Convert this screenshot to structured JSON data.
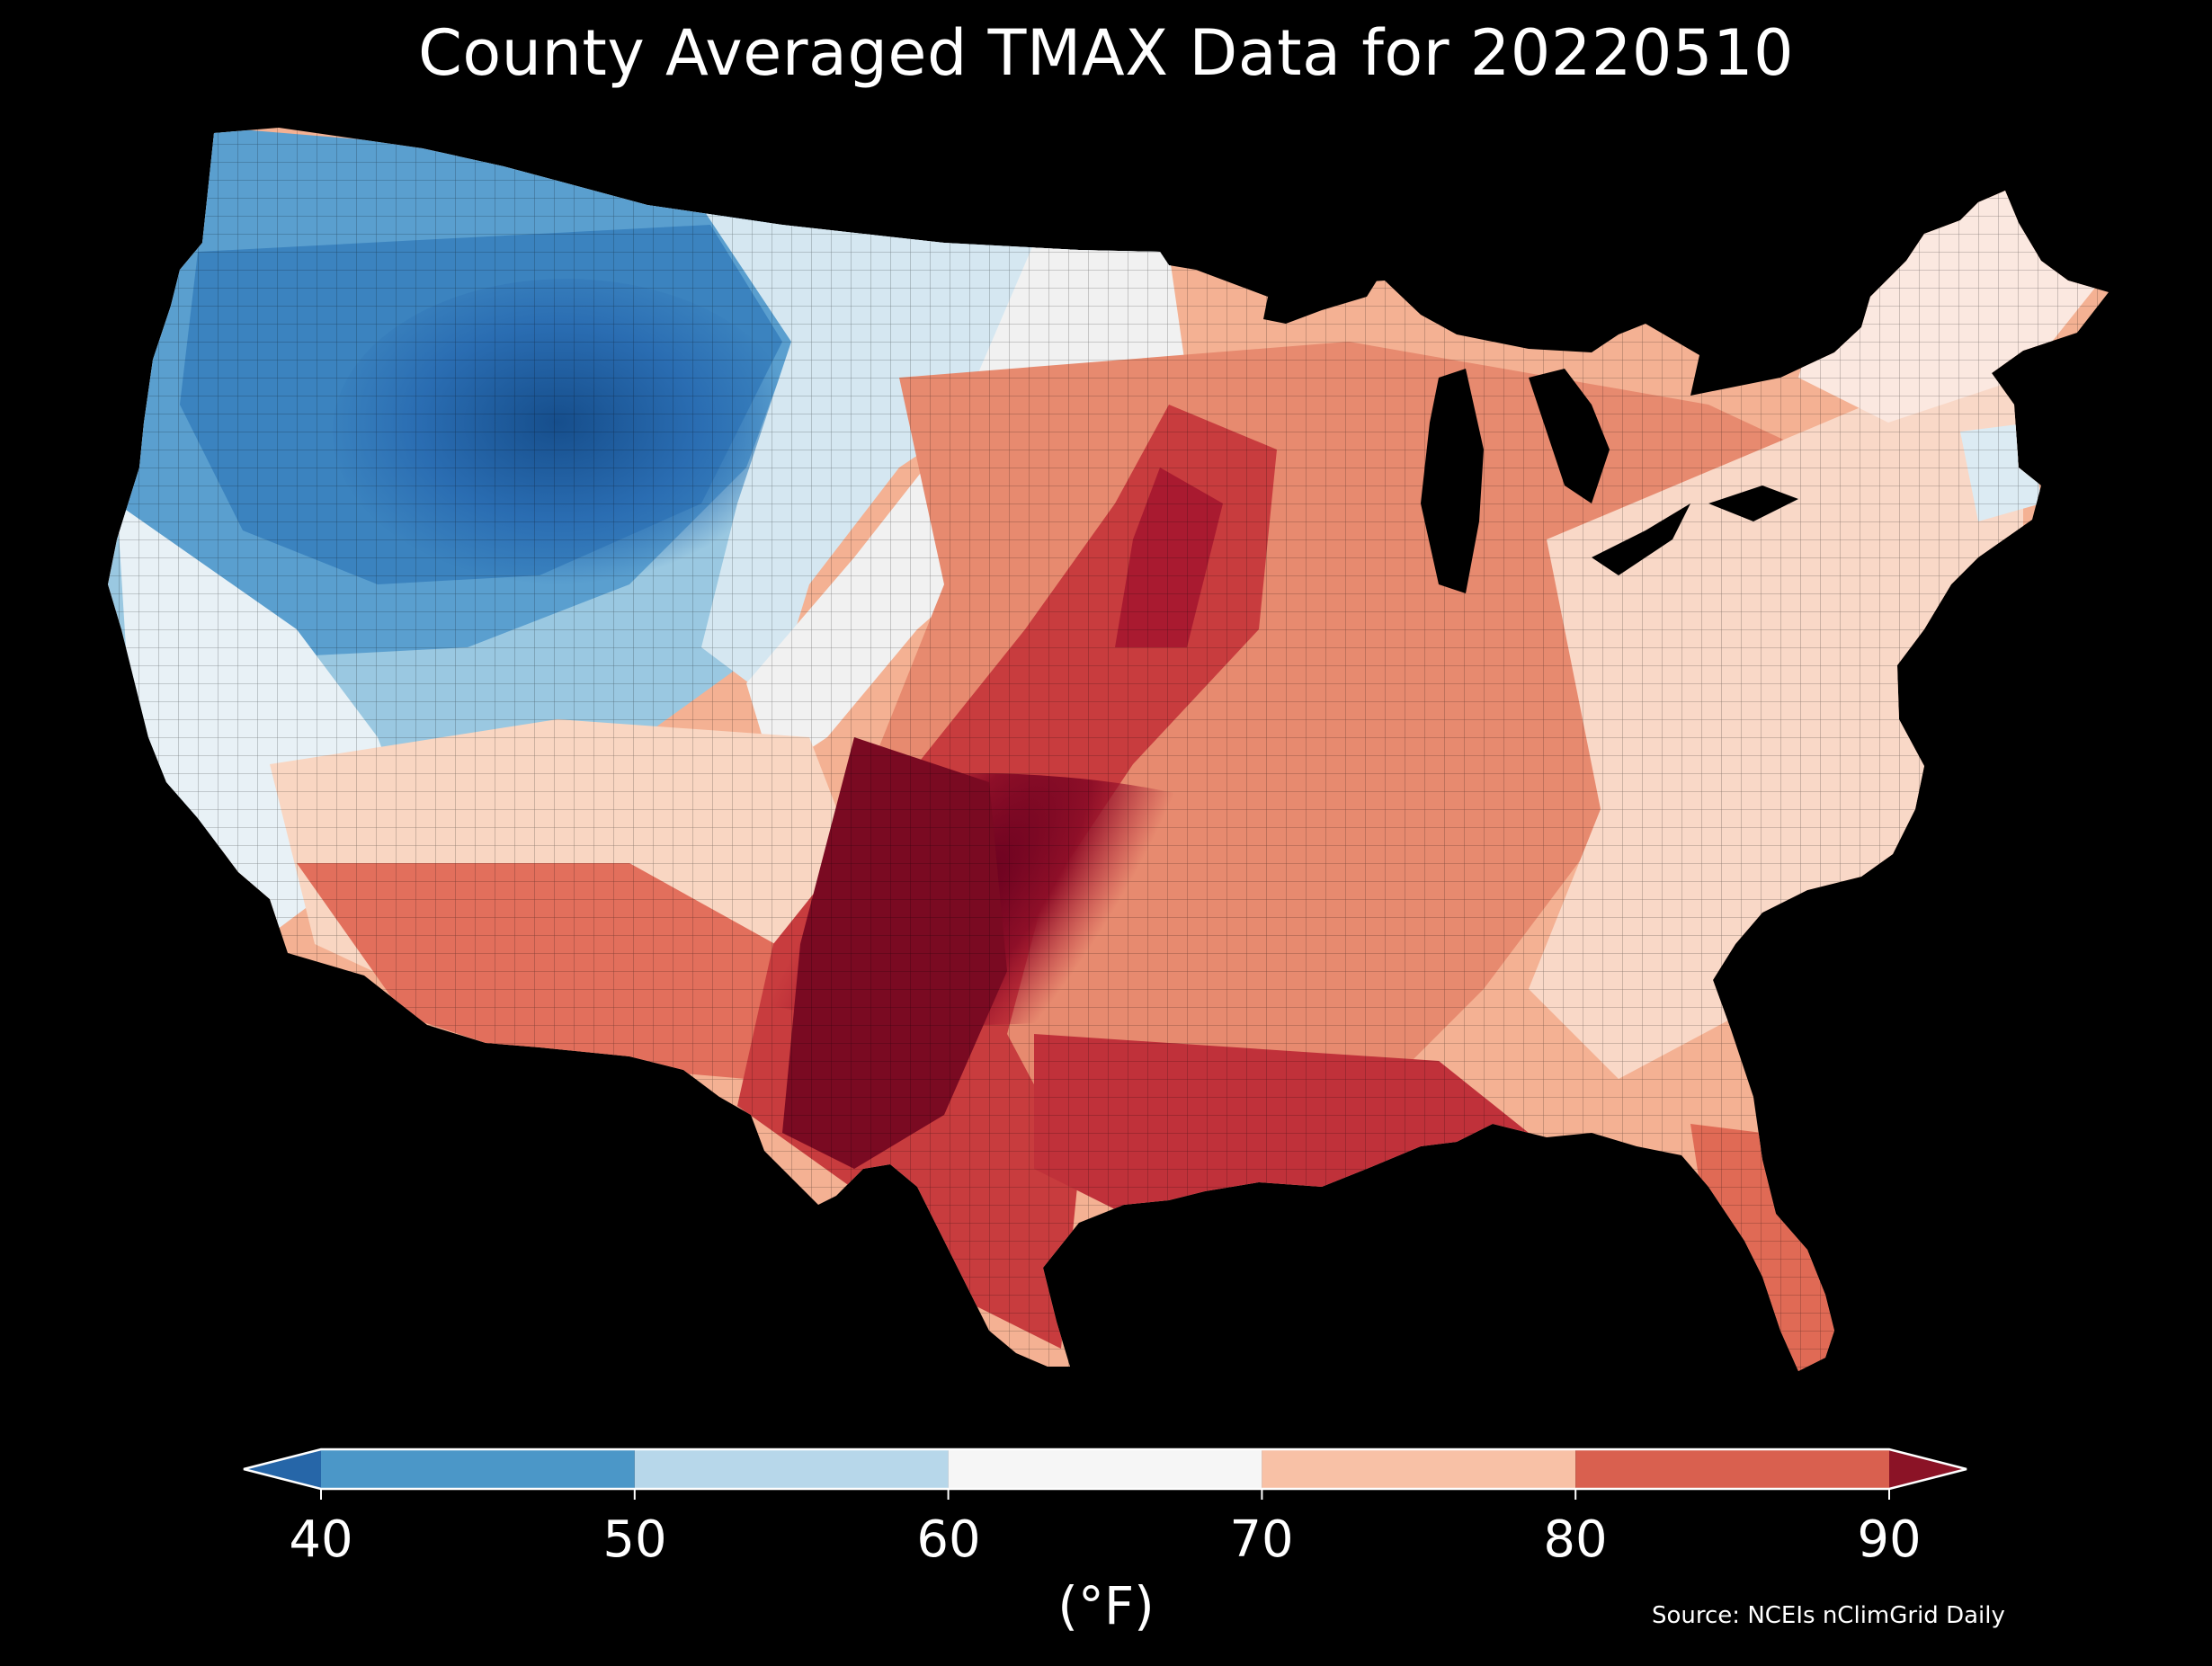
{
  "title": "County Averaged TMAX Data for 20220510",
  "source": "Source: NCEIs nClimGrid Daily",
  "colorbar": {
    "unit": "(°F)",
    "ticks": [
      "40",
      "50",
      "60",
      "70",
      "80",
      "90"
    ],
    "values": [
      40,
      50,
      60,
      70,
      80,
      90
    ],
    "extend": "both",
    "bins": [
      {
        "from": 40,
        "to": 50,
        "color": "#4b97c8"
      },
      {
        "from": 50,
        "to": 60,
        "color": "#b7d7ea"
      },
      {
        "from": 60,
        "to": 70,
        "color": "#f6f6f6"
      },
      {
        "from": 70,
        "to": 80,
        "color": "#f8c1a6"
      },
      {
        "from": 80,
        "to": 90,
        "color": "#d9604f"
      }
    ],
    "under_color": "#2666a8",
    "over_color": "#8b1326"
  },
  "map": {
    "region": "Contiguous United States",
    "units": "county",
    "variable": "TMAX",
    "hotspot": "southern Great Plains (west Texas to Iowa)",
    "coldspot": "northern Rockies (Idaho, Montana, Wyoming)"
  }
}
